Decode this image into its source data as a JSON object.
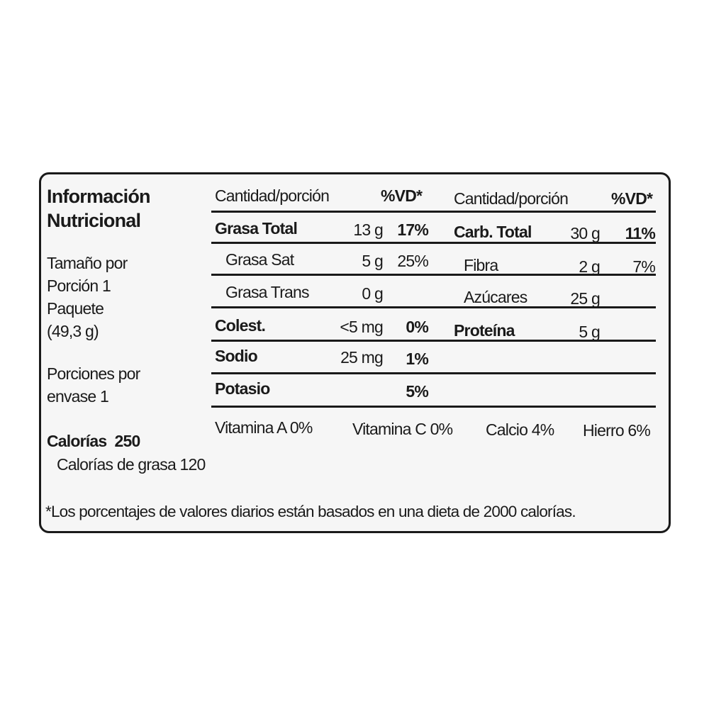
{
  "left": {
    "title_line1": "Información",
    "title_line2": "Nutricional",
    "serving": [
      "Tamaño por",
      "Porción 1",
      "Paquete",
      "(49,3 g)"
    ],
    "servings_per": [
      "Porciones por",
      "envase 1"
    ],
    "calories": "Calorías  250",
    "fat_calories": "Calorías de grasa 120"
  },
  "header": {
    "amount": "Cantidad/porción",
    "dv": "%VD*"
  },
  "left_rows": [
    {
      "name": "Grasa Total",
      "amount": "13 g",
      "dv": "17%"
    },
    {
      "name": "Grasa Sat",
      "amount": "5 g",
      "dv": "25%"
    },
    {
      "name": "Grasa Trans",
      "amount": "0 g",
      "dv": ""
    },
    {
      "name": "Colest.",
      "amount": "<5 mg",
      "dv": "0%"
    },
    {
      "name": "Sodio",
      "amount": "25 mg",
      "dv": "1%"
    },
    {
      "name": "Potasio",
      "amount": "",
      "dv": "5%"
    }
  ],
  "right_rows": [
    {
      "name": "Carb. Total",
      "amount": "30 g",
      "dv": "11%"
    },
    {
      "name": "Fibra",
      "amount": "2 g",
      "dv": "7%"
    },
    {
      "name": "Azúcares",
      "amount": "25 g",
      "dv": ""
    },
    {
      "name": "Proteína",
      "amount": "5 g",
      "dv": ""
    }
  ],
  "vitamins": [
    "Vitamina A 0%",
    "Vitamina C 0%",
    "Calcio 4%",
    "Hierro 6%"
  ],
  "footnote": "*Los porcentajes de valores diarios están basados en una dieta de 2000 calorías."
}
